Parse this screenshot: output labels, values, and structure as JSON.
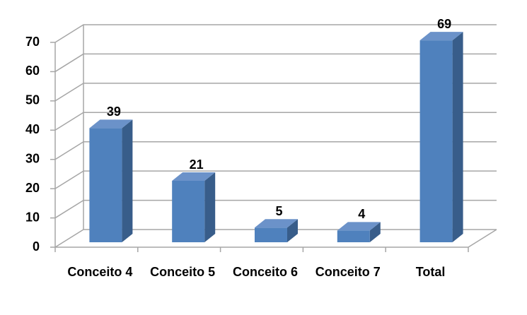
{
  "chart_data": {
    "type": "bar3d",
    "categories": [
      "Conceito 4",
      "Conceito 5",
      "Conceito 6",
      "Conceito 7",
      "Total"
    ],
    "values": [
      39,
      21,
      5,
      4,
      69
    ],
    "color": "#4f81bd",
    "ylim": [
      0,
      70
    ],
    "yticks": [
      0,
      10,
      20,
      30,
      40,
      50,
      60,
      70
    ],
    "grid": true
  }
}
